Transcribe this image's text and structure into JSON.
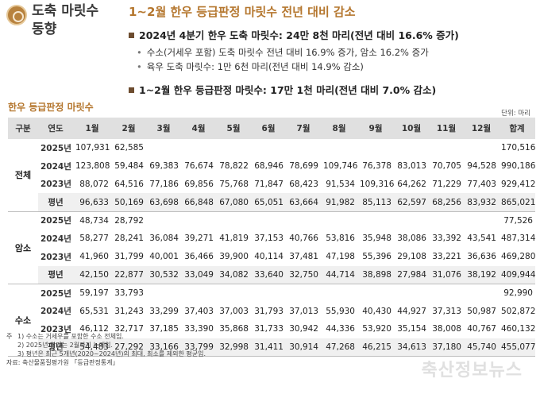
{
  "header": {
    "side_title_line1": "도축 마릿수",
    "side_title_line2": "동향",
    "main_title": "1~2월 한우 등급판정 마릿수 전년 대비 감소",
    "bullet1": "2024년 4분기 한우 도축 마릿수: 24만 8천 마리(전년 대비 16.6% 증가)",
    "sub1": "수소(거세우 포함) 도축 마릿수 전년 대비 16.9% 증가, 암소 16.2% 증가",
    "sub2": "육우 도축 마릿수: 1만 6천 마리(전년 대비 14.9% 감소)",
    "bullet2": "1~2월 한우 등급판정 마릿수: 17만 1천 마리(전년 대비 7.0% 감소)"
  },
  "table": {
    "title": "한우 등급판정 마릿수",
    "unit": "단위: 마리",
    "headers": [
      "구분",
      "연도",
      "1월",
      "2월",
      "3월",
      "4월",
      "5월",
      "6월",
      "7월",
      "8월",
      "9월",
      "10월",
      "11월",
      "12월",
      "합계"
    ],
    "groups": [
      {
        "name": "전체",
        "rows": [
          {
            "year": "2025년",
            "values": [
              "107,931",
              "62,585",
              "",
              "",
              "",
              "",
              "",
              "",
              "",
              "",
              "",
              "",
              "170,516"
            ]
          },
          {
            "year": "2024년",
            "values": [
              "123,808",
              "59,484",
              "69,383",
              "76,674",
              "78,822",
              "68,946",
              "78,699",
              "109,746",
              "76,378",
              "83,013",
              "70,705",
              "94,528",
              "990,186"
            ]
          },
          {
            "year": "2023년",
            "values": [
              "88,072",
              "64,516",
              "77,186",
              "69,856",
              "75,768",
              "71,847",
              "68,423",
              "91,534",
              "109,316",
              "64,262",
              "71,229",
              "77,403",
              "929,412"
            ]
          },
          {
            "year": "평년",
            "values": [
              "96,633",
              "50,169",
              "63,698",
              "66,848",
              "67,080",
              "65,051",
              "63,664",
              "91,982",
              "85,113",
              "62,597",
              "68,256",
              "83,932",
              "865,021"
            ]
          }
        ]
      },
      {
        "name": "암소",
        "rows": [
          {
            "year": "2025년",
            "values": [
              "48,734",
              "28,792",
              "",
              "",
              "",
              "",
              "",
              "",
              "",
              "",
              "",
              "",
              "77,526"
            ]
          },
          {
            "year": "2024년",
            "values": [
              "58,277",
              "28,241",
              "36,084",
              "39,271",
              "41,819",
              "37,153",
              "40,766",
              "53,816",
              "35,948",
              "38,086",
              "33,392",
              "43,541",
              "487,314"
            ]
          },
          {
            "year": "2023년",
            "values": [
              "41,960",
              "31,799",
              "40,001",
              "36,466",
              "39,900",
              "40,114",
              "37,481",
              "47,198",
              "55,396",
              "29,108",
              "33,221",
              "36,636",
              "469,280"
            ]
          },
          {
            "year": "평년",
            "values": [
              "42,150",
              "22,877",
              "30,532",
              "33,049",
              "34,082",
              "33,640",
              "32,750",
              "44,714",
              "38,898",
              "27,984",
              "31,076",
              "38,192",
              "409,944"
            ]
          }
        ]
      },
      {
        "name": "수소",
        "rows": [
          {
            "year": "2025년",
            "values": [
              "59,197",
              "33,793",
              "",
              "",
              "",
              "",
              "",
              "",
              "",
              "",
              "",
              "",
              "92,990"
            ]
          },
          {
            "year": "2024년",
            "values": [
              "65,531",
              "31,243",
              "33,299",
              "37,403",
              "37,003",
              "31,793",
              "37,013",
              "55,930",
              "40,430",
              "44,927",
              "37,313",
              "50,987",
              "502,872"
            ]
          },
          {
            "year": "2023년",
            "values": [
              "46,112",
              "32,717",
              "37,185",
              "33,390",
              "35,868",
              "31,733",
              "30,942",
              "44,336",
              "53,920",
              "35,154",
              "38,008",
              "40,767",
              "460,132"
            ]
          },
          {
            "year": "평년",
            "values": [
              "54,483",
              "27,292",
              "33,166",
              "33,799",
              "32,998",
              "31,411",
              "30,914",
              "47,268",
              "46,215",
              "34,613",
              "37,180",
              "45,740",
              "455,077"
            ]
          }
        ]
      }
    ]
  },
  "notes": {
    "prefix": "주",
    "n1": "1) 수소는 거세우를 포함한 수소 전체임.",
    "n2": "2) 2025년 합계는 2월까지 누계임.",
    "n3": "3) 평년은 최근 5개년(2020~2024년)의 최대, 최소를 제외한 평균임.",
    "source": "자료: 축산물품질평가원 「등급판정통계」"
  },
  "watermark": "축산정보뉴스"
}
